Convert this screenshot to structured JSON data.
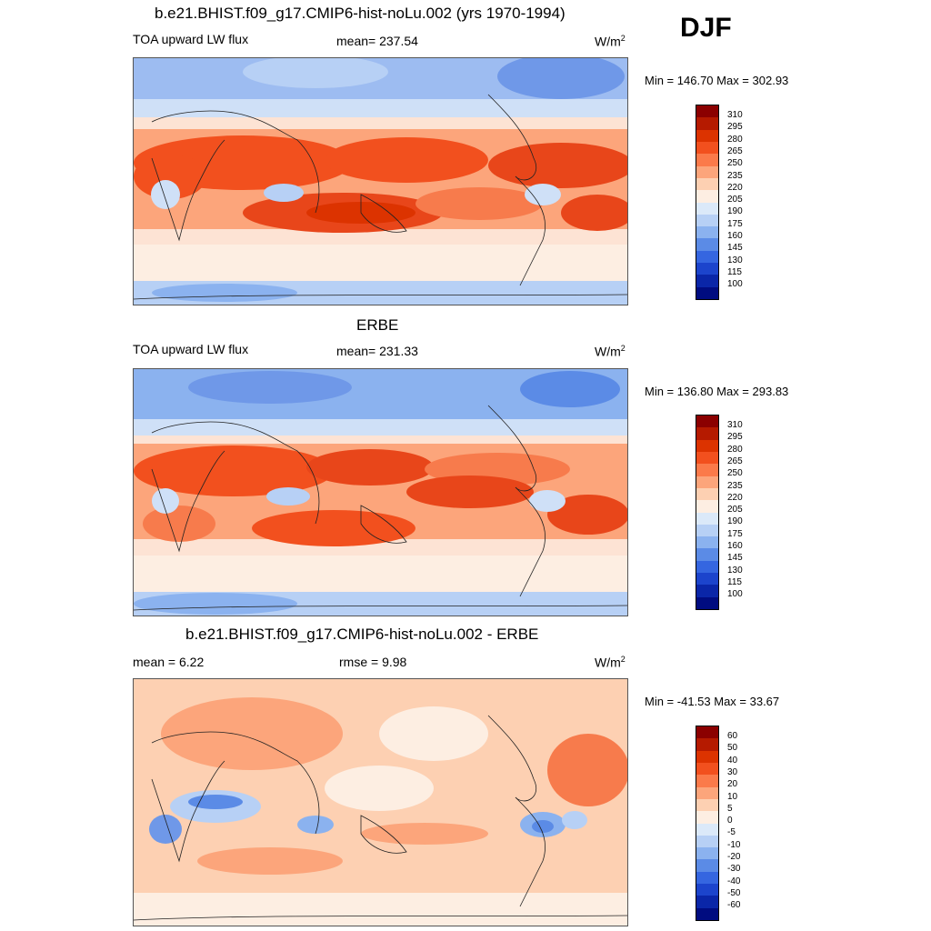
{
  "season": "DJF",
  "panels": [
    {
      "title": "b.e21.BHIST.f09_g17.CMIP6-hist-noLu.002 (yrs 1970-1994)",
      "left_label": "TOA upward LW flux",
      "center_label": "mean= 237.54",
      "units": "W/m",
      "units_sup": "2",
      "minmax": "Min = 146.70 Max = 302.93",
      "ticks": [
        "310",
        "295",
        "280",
        "265",
        "250",
        "235",
        "220",
        "205",
        "190",
        "175",
        "160",
        "145",
        "130",
        "115",
        "100"
      ]
    },
    {
      "title": "ERBE",
      "left_label": "TOA upward LW flux",
      "center_label": "mean= 231.33",
      "units": "W/m",
      "units_sup": "2",
      "minmax": "Min = 136.80 Max = 293.83",
      "ticks": [
        "310",
        "295",
        "280",
        "265",
        "250",
        "235",
        "220",
        "205",
        "190",
        "175",
        "160",
        "145",
        "130",
        "115",
        "100"
      ]
    },
    {
      "title": "b.e21.BHIST.f09_g17.CMIP6-hist-noLu.002 - ERBE",
      "left_label": "mean =   6.22",
      "center_label": "rmse =   9.98",
      "units": "W/m",
      "units_sup": "2",
      "minmax": "Min = -41.53 Max =  33.67",
      "ticks": [
        "60",
        "50",
        "40",
        "30",
        "20",
        "10",
        "5",
        "0",
        "-5",
        "-10",
        "-20",
        "-30",
        "-40",
        "-50",
        "-60"
      ]
    }
  ],
  "colorbar_colors": [
    "#8b0000",
    "#b51a00",
    "#dc3300",
    "#f2501e",
    "#fb7a4a",
    "#fca57b",
    "#fdd0b2",
    "#fdeee2",
    "#dbe9f9",
    "#b7d0f5",
    "#8bb2ef",
    "#5b8be6",
    "#3566e0",
    "#1c44cc",
    "#0a26a8",
    "#000c80"
  ],
  "colors": {
    "deep_red": "#c82800",
    "red": "#e8461a",
    "orange": "#f77b4c",
    "peach": "#fcb598",
    "cream": "#fde3d4",
    "light_blue": "#cfe0f7",
    "blue": "#9dbcf1",
    "mid_blue": "#6f98e8",
    "dark_blue": "#4270dc"
  }
}
